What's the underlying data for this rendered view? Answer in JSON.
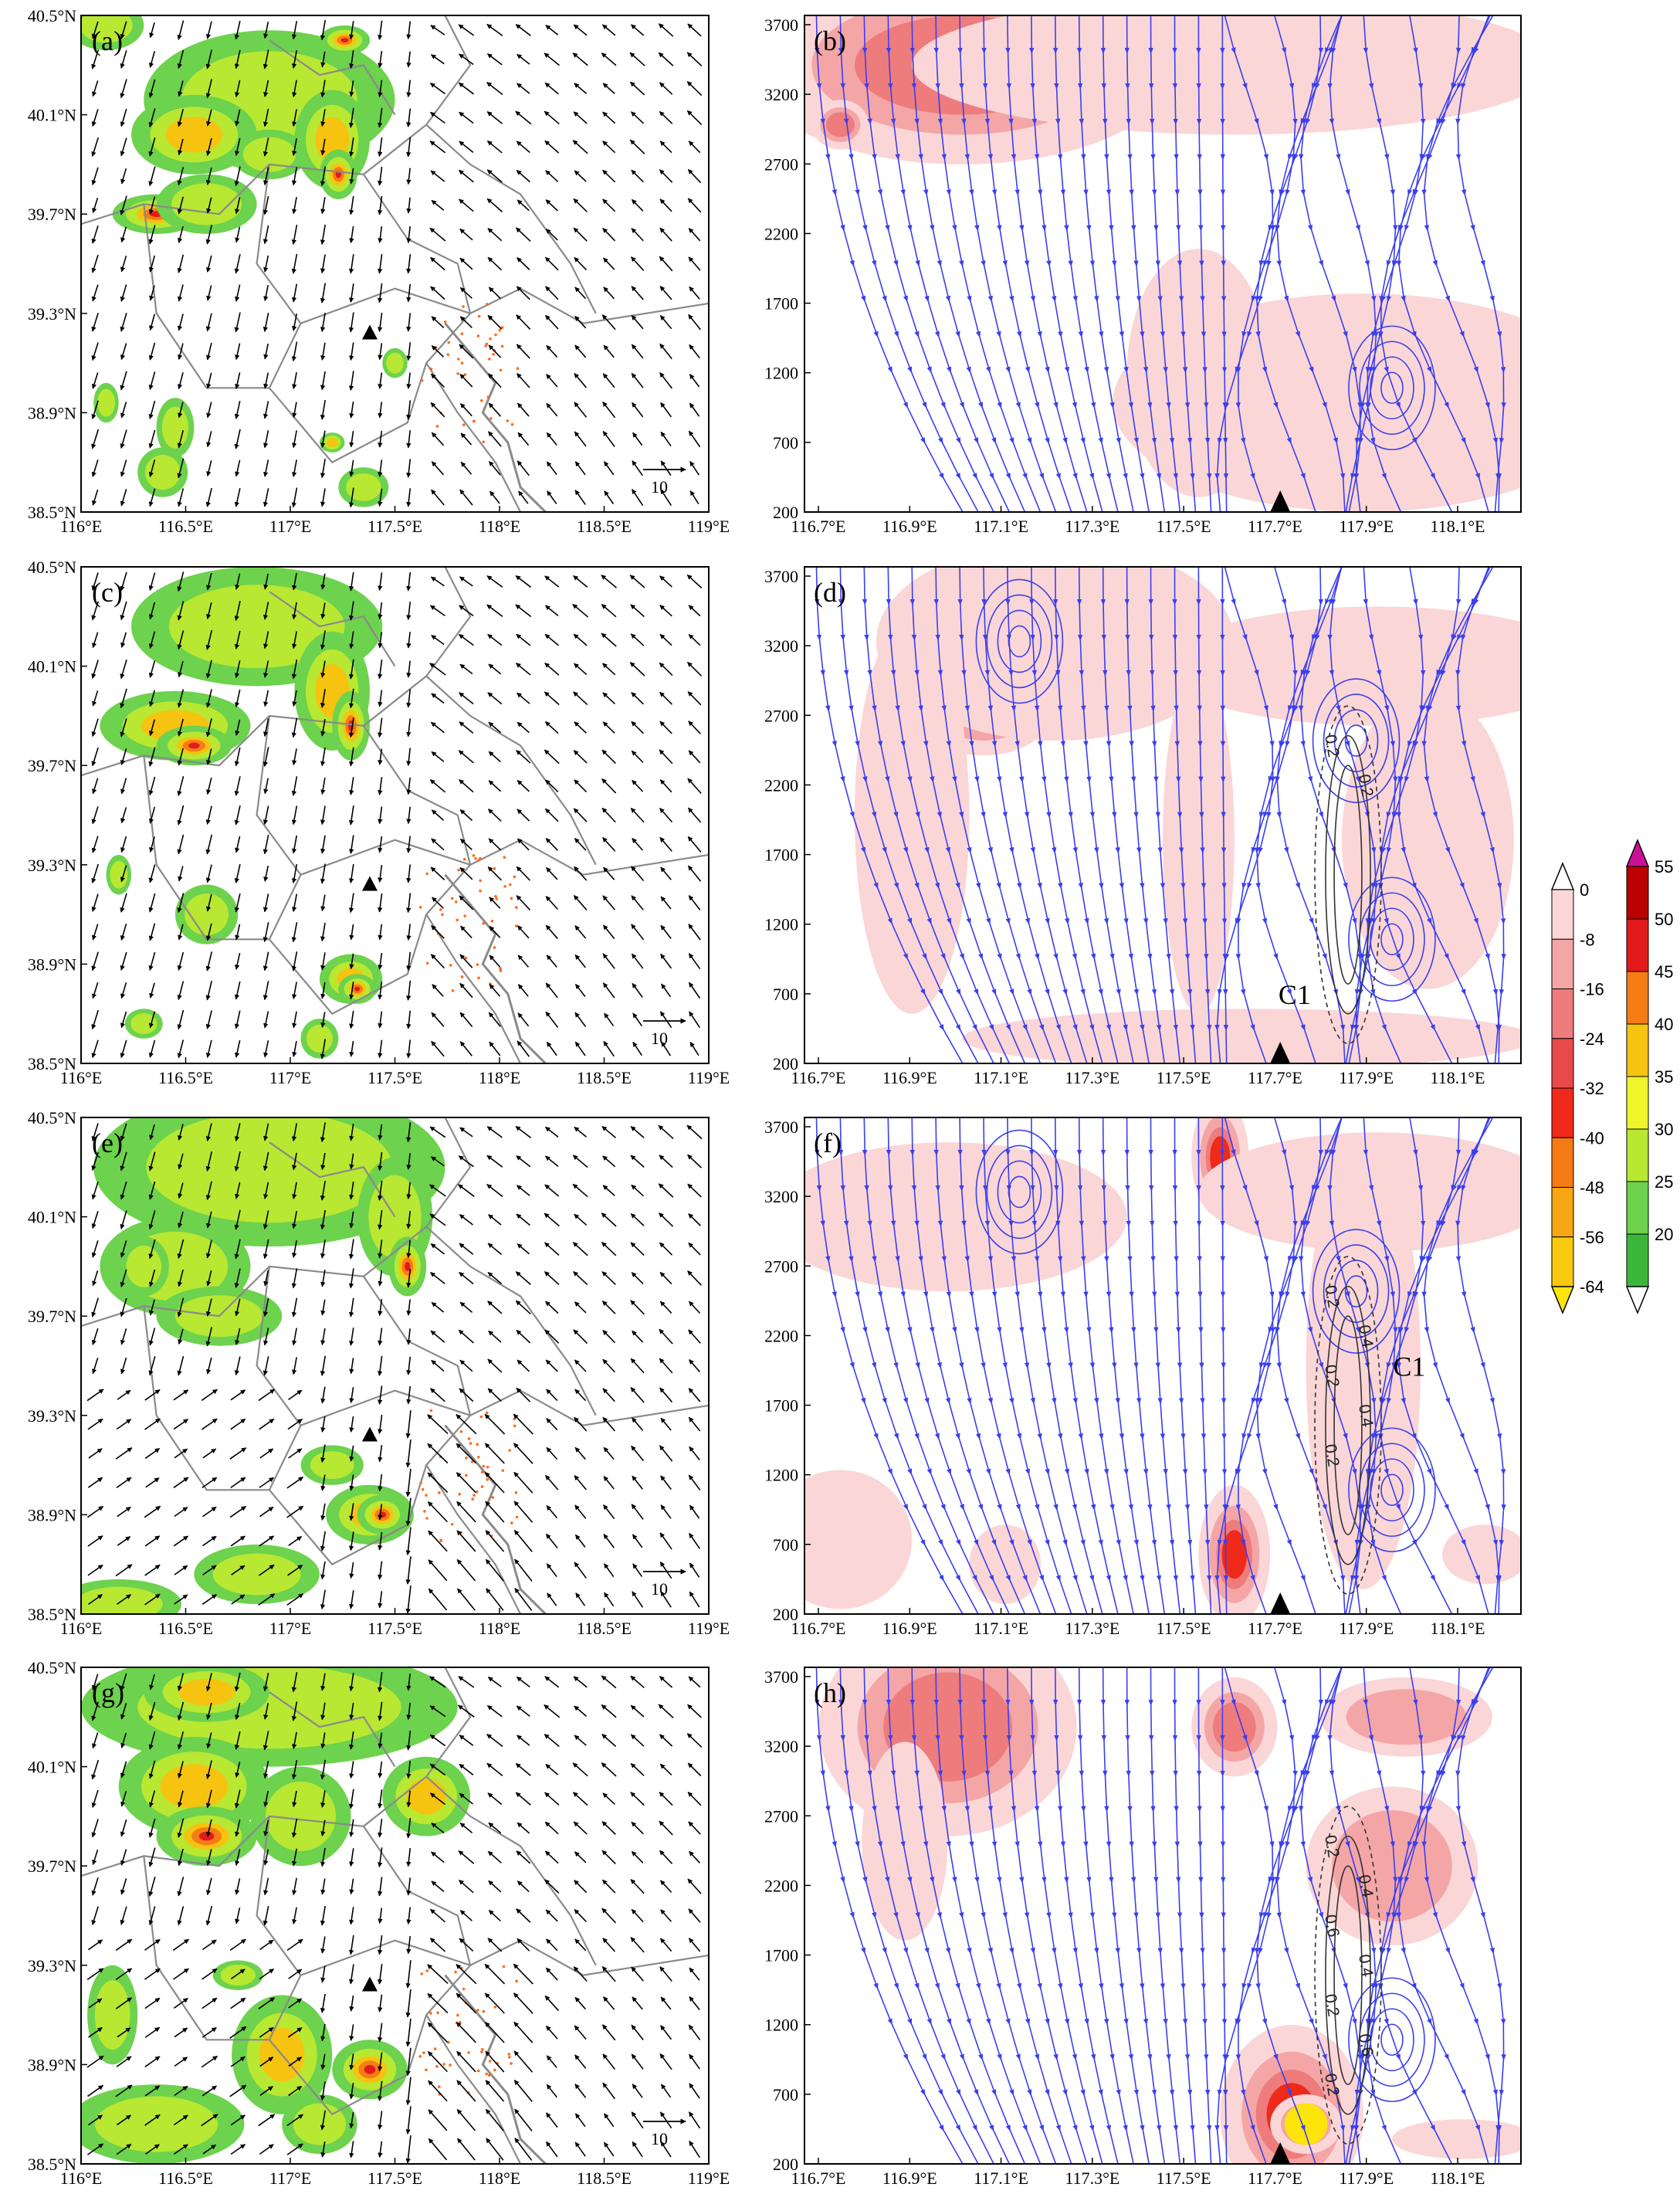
{
  "figure": {
    "map_panels": [
      {
        "label": "(a)",
        "scale_label": "10"
      },
      {
        "label": "(c)",
        "scale_label": "10"
      },
      {
        "label": "(e)",
        "scale_label": "10"
      },
      {
        "label": "(g)",
        "scale_label": "10"
      }
    ],
    "section_panels": [
      {
        "label": "(b)",
        "contour_labels": []
      },
      {
        "label": "(d)",
        "contour_labels": [
          "0.2",
          "0.2"
        ],
        "cyclone_label": "C1"
      },
      {
        "label": "(f)",
        "contour_labels": [
          "0.2",
          "0.4",
          "0.2",
          "0.4",
          "0.2"
        ],
        "cyclone_label": "C1"
      },
      {
        "label": "(h)",
        "contour_labels": [
          "0.2",
          "0.4",
          "0.6",
          "0.4",
          "0.2",
          "0.6",
          "0.2"
        ]
      }
    ],
    "map_axes": {
      "y_ticks": [
        "40.5°N",
        "40.1°N",
        "39.7°N",
        "39.3°N",
        "38.9°N",
        "38.5°N"
      ],
      "x_ticks": [
        "116°E",
        "116.5°E",
        "117°E",
        "117.5°E",
        "118°E",
        "118.5°E",
        "119°E"
      ]
    },
    "section_axes": {
      "y_ticks": [
        "3700",
        "3200",
        "2700",
        "2200",
        "1700",
        "1200",
        "700",
        "200"
      ],
      "x_ticks": [
        "116.7°E",
        "116.9°E",
        "117.1°E",
        "117.3°E",
        "117.5°E",
        "117.7°E",
        "117.9°E",
        "118.1°E"
      ]
    },
    "colorbar_left": {
      "labels": [
        "0",
        "-8",
        "-16",
        "-24",
        "-32",
        "-40",
        "-48",
        "-56",
        "-64"
      ],
      "colors": [
        "#ffffff",
        "#fbd6d6",
        "#f4a6a6",
        "#ee7c7c",
        "#e84a4a",
        "#ef2a1a",
        "#f37a14",
        "#f6a612",
        "#f8c90e",
        "#fde40a"
      ]
    },
    "colorbar_right": {
      "labels": [
        "55",
        "50",
        "45",
        "40",
        "35",
        "30",
        "25",
        "20"
      ],
      "colors": [
        "#cc1199",
        "#bb0000",
        "#e31a1c",
        "#f57d15",
        "#f6c310",
        "#eef52a",
        "#b8e832",
        "#6dd24d",
        "#3cb63a",
        "#ffffff"
      ]
    }
  }
}
